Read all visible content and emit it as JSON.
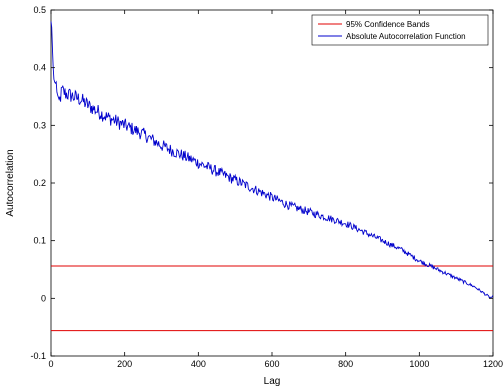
{
  "chart_data": {
    "type": "line",
    "xlabel": "Lag",
    "ylabel": "Autocorrelation",
    "xlim": [
      0,
      1200
    ],
    "ylim": [
      -0.1,
      0.5
    ],
    "x_ticks": [
      0,
      200,
      400,
      600,
      800,
      1000,
      1200
    ],
    "x_tick_labels": [
      "0",
      "200",
      "400",
      "600",
      "800",
      "1000",
      "1200"
    ],
    "y_ticks": [
      -0.1,
      0,
      0.1,
      0.2,
      0.3,
      0.4,
      0.5
    ],
    "y_tick_labels": [
      "-0.1",
      "0",
      "0.1",
      "0.2",
      "0.3",
      "0.4",
      "0.5"
    ],
    "grid": false,
    "legend_position": "top-right",
    "series": [
      {
        "name": "95% Confidence Bands",
        "color": "#e00000",
        "kind": "hlines",
        "levels": [
          0.056,
          -0.056
        ]
      },
      {
        "name": "Absolute Autocorrelation Function",
        "color": "#0000cc",
        "kind": "line",
        "x": [
          0,
          2,
          4,
          6,
          8,
          10,
          15,
          20,
          30,
          40,
          60,
          80,
          100,
          150,
          200,
          250,
          300,
          350,
          400,
          450,
          500,
          550,
          600,
          650,
          700,
          750,
          800,
          850,
          900,
          950,
          1000,
          1050,
          1100,
          1150,
          1195,
          1200
        ],
        "y": [
          0.48,
          0.47,
          0.43,
          0.4,
          0.38,
          0.375,
          0.37,
          0.335,
          0.36,
          0.355,
          0.35,
          0.345,
          0.335,
          0.315,
          0.3,
          0.285,
          0.265,
          0.25,
          0.235,
          0.22,
          0.205,
          0.19,
          0.175,
          0.16,
          0.15,
          0.14,
          0.13,
          0.115,
          0.1,
          0.085,
          0.065,
          0.05,
          0.035,
          0.02,
          0.0,
          0.003
        ]
      }
    ]
  }
}
